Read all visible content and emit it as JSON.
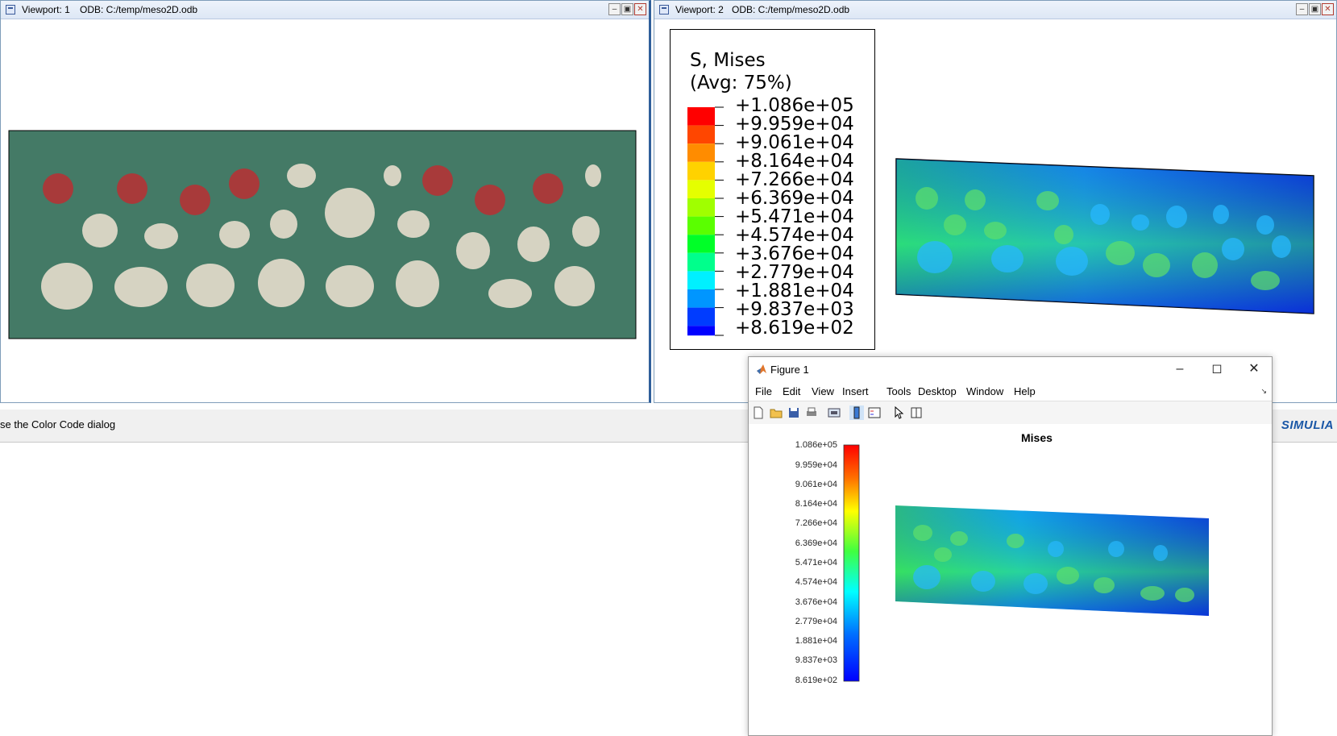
{
  "viewport1": {
    "label": "Viewport: 1",
    "odb": "ODB: C:/temp/meso2D.odb",
    "matrix_color": "#447a66",
    "aggregate_color": "#d6d3c2",
    "highlight_color": "#a83a3a"
  },
  "viewport2": {
    "label": "Viewport: 2",
    "odb": "ODB: C:/temp/meso2D.odb",
    "legend": {
      "title_line1": "S, Mises",
      "title_line2": "(Avg: 75%)",
      "values": [
        "+1.086e+05",
        "+9.959e+04",
        "+9.061e+04",
        "+8.164e+04",
        "+7.266e+04",
        "+6.369e+04",
        "+5.471e+04",
        "+4.574e+04",
        "+3.676e+04",
        "+2.779e+04",
        "+1.881e+04",
        "+9.837e+03",
        "+8.619e+02"
      ]
    }
  },
  "status": {
    "message": "se the Color Code dialog",
    "brand": "SIMULIA"
  },
  "figure": {
    "title": "Figure 1",
    "menu": [
      "File",
      "Edit",
      "View",
      "Insert",
      "Tools",
      "Desktop",
      "Window",
      "Help"
    ],
    "plot_title": "Mises",
    "colorbar_labels": [
      "1.086e+05",
      "9.959e+04",
      "9.061e+04",
      "8.164e+04",
      "7.266e+04",
      "6.369e+04",
      "5.471e+04",
      "4.574e+04",
      "3.676e+04",
      "2.779e+04",
      "1.881e+04",
      "9.837e+03",
      "8.619e+02"
    ],
    "toolbar_icons": [
      "new-file-icon",
      "open-folder-icon",
      "save-icon",
      "print-icon",
      "link-plot-icon",
      "colorbar-icon",
      "legend-icon",
      "pointer-icon",
      "property-inspector-icon"
    ]
  }
}
